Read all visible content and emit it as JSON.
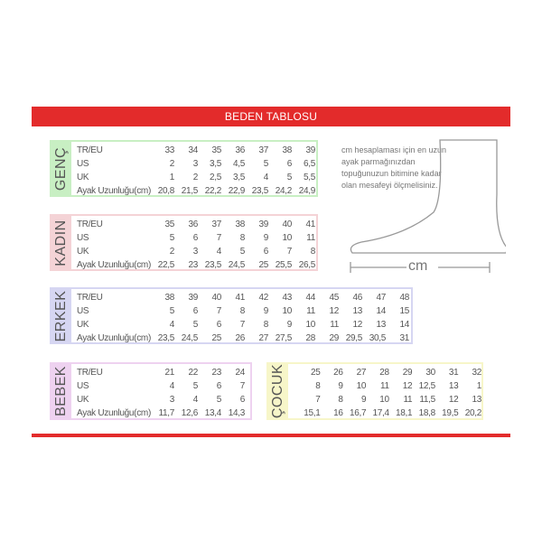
{
  "title": "BEDEN TABLOSU",
  "row_labels": [
    "TR/EU",
    "US",
    "UK",
    "Ayak Uzunluğu(cm)"
  ],
  "tables": [
    {
      "name": "GENÇ",
      "color": "#c8efc3",
      "rows": [
        [
          "33",
          "34",
          "35",
          "36",
          "37",
          "38",
          "39"
        ],
        [
          "2",
          "3",
          "3,5",
          "4,5",
          "5",
          "6",
          "6,5"
        ],
        [
          "1",
          "2",
          "2,5",
          "3,5",
          "4",
          "5",
          "5,5"
        ],
        [
          "20,8",
          "21,5",
          "22,2",
          "22,9",
          "23,5",
          "24,2",
          "24,9"
        ]
      ]
    },
    {
      "name": "KADIN",
      "color": "#f4d3d6",
      "rows": [
        [
          "35",
          "36",
          "37",
          "38",
          "39",
          "40",
          "41"
        ],
        [
          "5",
          "6",
          "7",
          "8",
          "9",
          "10",
          "11"
        ],
        [
          "2",
          "3",
          "4",
          "5",
          "6",
          "7",
          "8"
        ],
        [
          "22,5",
          "23",
          "23,5",
          "24,5",
          "25",
          "25,5",
          "26,5"
        ]
      ]
    },
    {
      "name": "ERKEK",
      "color": "#d6d6f2",
      "rows": [
        [
          "38",
          "39",
          "40",
          "41",
          "42",
          "43",
          "44",
          "45",
          "46",
          "47",
          "48"
        ],
        [
          "5",
          "6",
          "7",
          "8",
          "9",
          "10",
          "11",
          "12",
          "13",
          "14",
          "15"
        ],
        [
          "4",
          "5",
          "6",
          "7",
          "8",
          "9",
          "10",
          "11",
          "12",
          "13",
          "14"
        ],
        [
          "23,5",
          "24,5",
          "25",
          "26",
          "27",
          "27,5",
          "28",
          "29",
          "29,5",
          "30,5",
          "31"
        ]
      ]
    },
    {
      "name": "BEBEK",
      "color": "#eed2f0",
      "rows": [
        [
          "21",
          "22",
          "23",
          "24"
        ],
        [
          "4",
          "5",
          "6",
          "7"
        ],
        [
          "3",
          "4",
          "5",
          "6"
        ],
        [
          "11,7",
          "12,6",
          "13,4",
          "14,3"
        ]
      ]
    },
    {
      "name": "ÇOCUK",
      "color": "#f7f6c9",
      "rows": [
        [
          "25",
          "26",
          "27",
          "28",
          "29",
          "30",
          "31",
          "32"
        ],
        [
          "8",
          "9",
          "10",
          "11",
          "12",
          "12,5",
          "13",
          "1"
        ],
        [
          "7",
          "8",
          "9",
          "10",
          "11",
          "11,5",
          "12",
          "13"
        ],
        [
          "15,1",
          "16",
          "16,7",
          "17,4",
          "18,1",
          "18,8",
          "19,5",
          "20,2"
        ]
      ]
    }
  ],
  "note": "cm hesaplaması için en uzun ayak parmağınızdan topuğunuzun bitimine kadar olan mesafeyi ölçmelisiniz.",
  "measure_unit": "cm"
}
